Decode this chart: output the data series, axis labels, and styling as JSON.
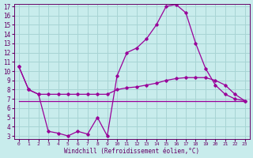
{
  "xlabel": "Windchill (Refroidissement éolien,°C)",
  "bg_color": "#c8ecec",
  "grid_color": "#a8d4d4",
  "line_color": "#990099",
  "hours": [
    0,
    1,
    2,
    3,
    4,
    5,
    6,
    7,
    8,
    9,
    10,
    11,
    12,
    13,
    14,
    15,
    16,
    17,
    18,
    19,
    20,
    21,
    22,
    23
  ],
  "windchill": [
    10.5,
    8.0,
    7.5,
    3.5,
    3.3,
    3.0,
    3.5,
    3.2,
    5.0,
    3.0,
    9.5,
    12.0,
    12.5,
    13.5,
    15.0,
    17.0,
    17.2,
    16.3,
    13.0,
    10.3,
    8.5,
    7.5,
    7.0,
    6.8
  ],
  "temp": [
    10.5,
    8.0,
    7.5,
    7.5,
    7.5,
    7.5,
    7.5,
    7.5,
    7.5,
    7.5,
    8.0,
    8.2,
    8.3,
    8.5,
    8.7,
    9.0,
    9.2,
    9.3,
    9.3,
    9.3,
    9.0,
    8.5,
    7.5,
    6.8
  ],
  "flat_line": [
    6.8,
    6.8,
    6.8,
    6.8,
    6.8,
    6.8,
    6.8,
    6.8,
    6.8,
    6.8,
    6.8,
    6.8,
    6.8,
    6.8,
    6.8,
    6.8,
    6.8,
    6.8,
    6.8,
    6.8,
    6.8,
    6.8,
    6.8,
    6.8
  ],
  "ylim": [
    2.7,
    17.3
  ],
  "yticks": [
    3,
    4,
    5,
    6,
    7,
    8,
    9,
    10,
    11,
    12,
    13,
    14,
    15,
    16,
    17
  ],
  "xticks": [
    0,
    1,
    2,
    3,
    4,
    5,
    6,
    7,
    8,
    9,
    10,
    11,
    12,
    13,
    14,
    15,
    16,
    17,
    18,
    19,
    20,
    21,
    22,
    23
  ]
}
